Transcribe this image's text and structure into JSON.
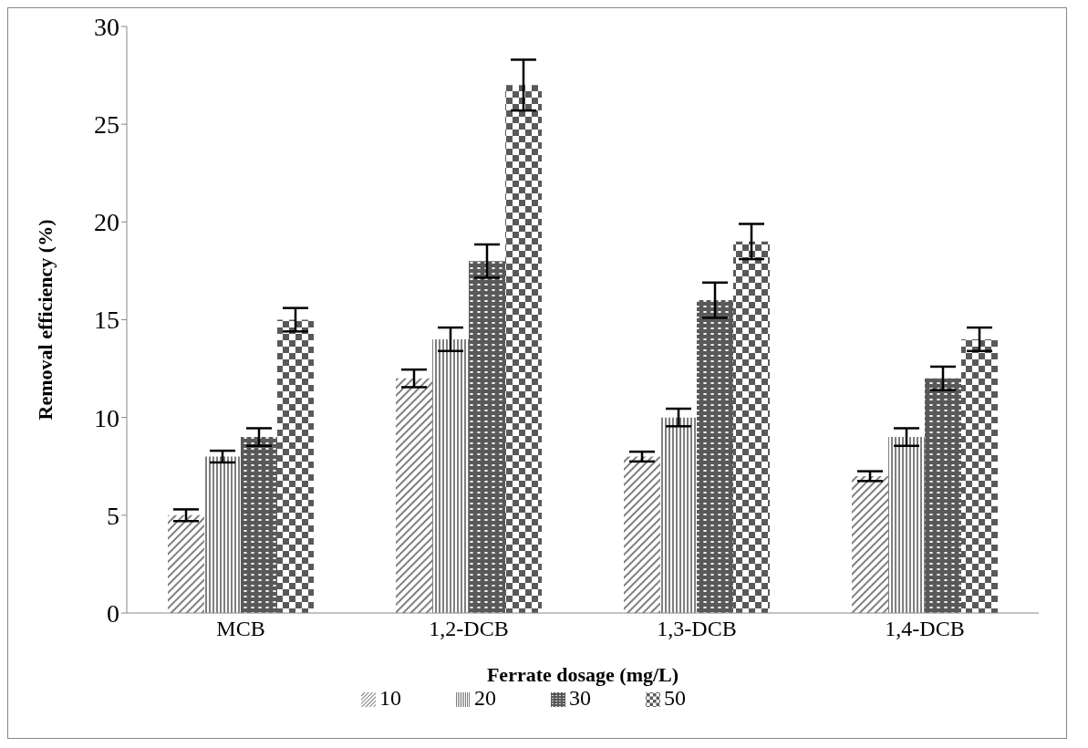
{
  "chart_data": {
    "type": "bar",
    "xlabel": "Ferrate dosage (mg/L)",
    "ylabel": "Removal efficiency  (%)",
    "categories": [
      "MCB",
      "1,2-DCB",
      "1,3-DCB",
      "1,4-DCB"
    ],
    "series": [
      {
        "name": "10",
        "color": "#7f7f7f",
        "values": [
          5,
          12,
          8,
          7
        ],
        "errors": [
          0.3,
          0.45,
          0.25,
          0.25
        ]
      },
      {
        "name": "20",
        "color": "#7f7f7f",
        "values": [
          8,
          14,
          10,
          9
        ],
        "errors": [
          0.3,
          0.6,
          0.45,
          0.45
        ]
      },
      {
        "name": "30",
        "color": "#595959",
        "values": [
          9,
          18,
          16,
          12
        ],
        "errors": [
          0.45,
          0.85,
          0.9,
          0.6
        ]
      },
      {
        "name": "50",
        "color": "#595959",
        "values": [
          15,
          27,
          19,
          14
        ],
        "errors": [
          0.6,
          1.3,
          0.9,
          0.6
        ]
      }
    ],
    "ylim": [
      0,
      30
    ],
    "yticks": [
      0,
      5,
      10,
      15,
      20,
      25,
      30
    ],
    "grid": false,
    "legend": "bottom"
  }
}
